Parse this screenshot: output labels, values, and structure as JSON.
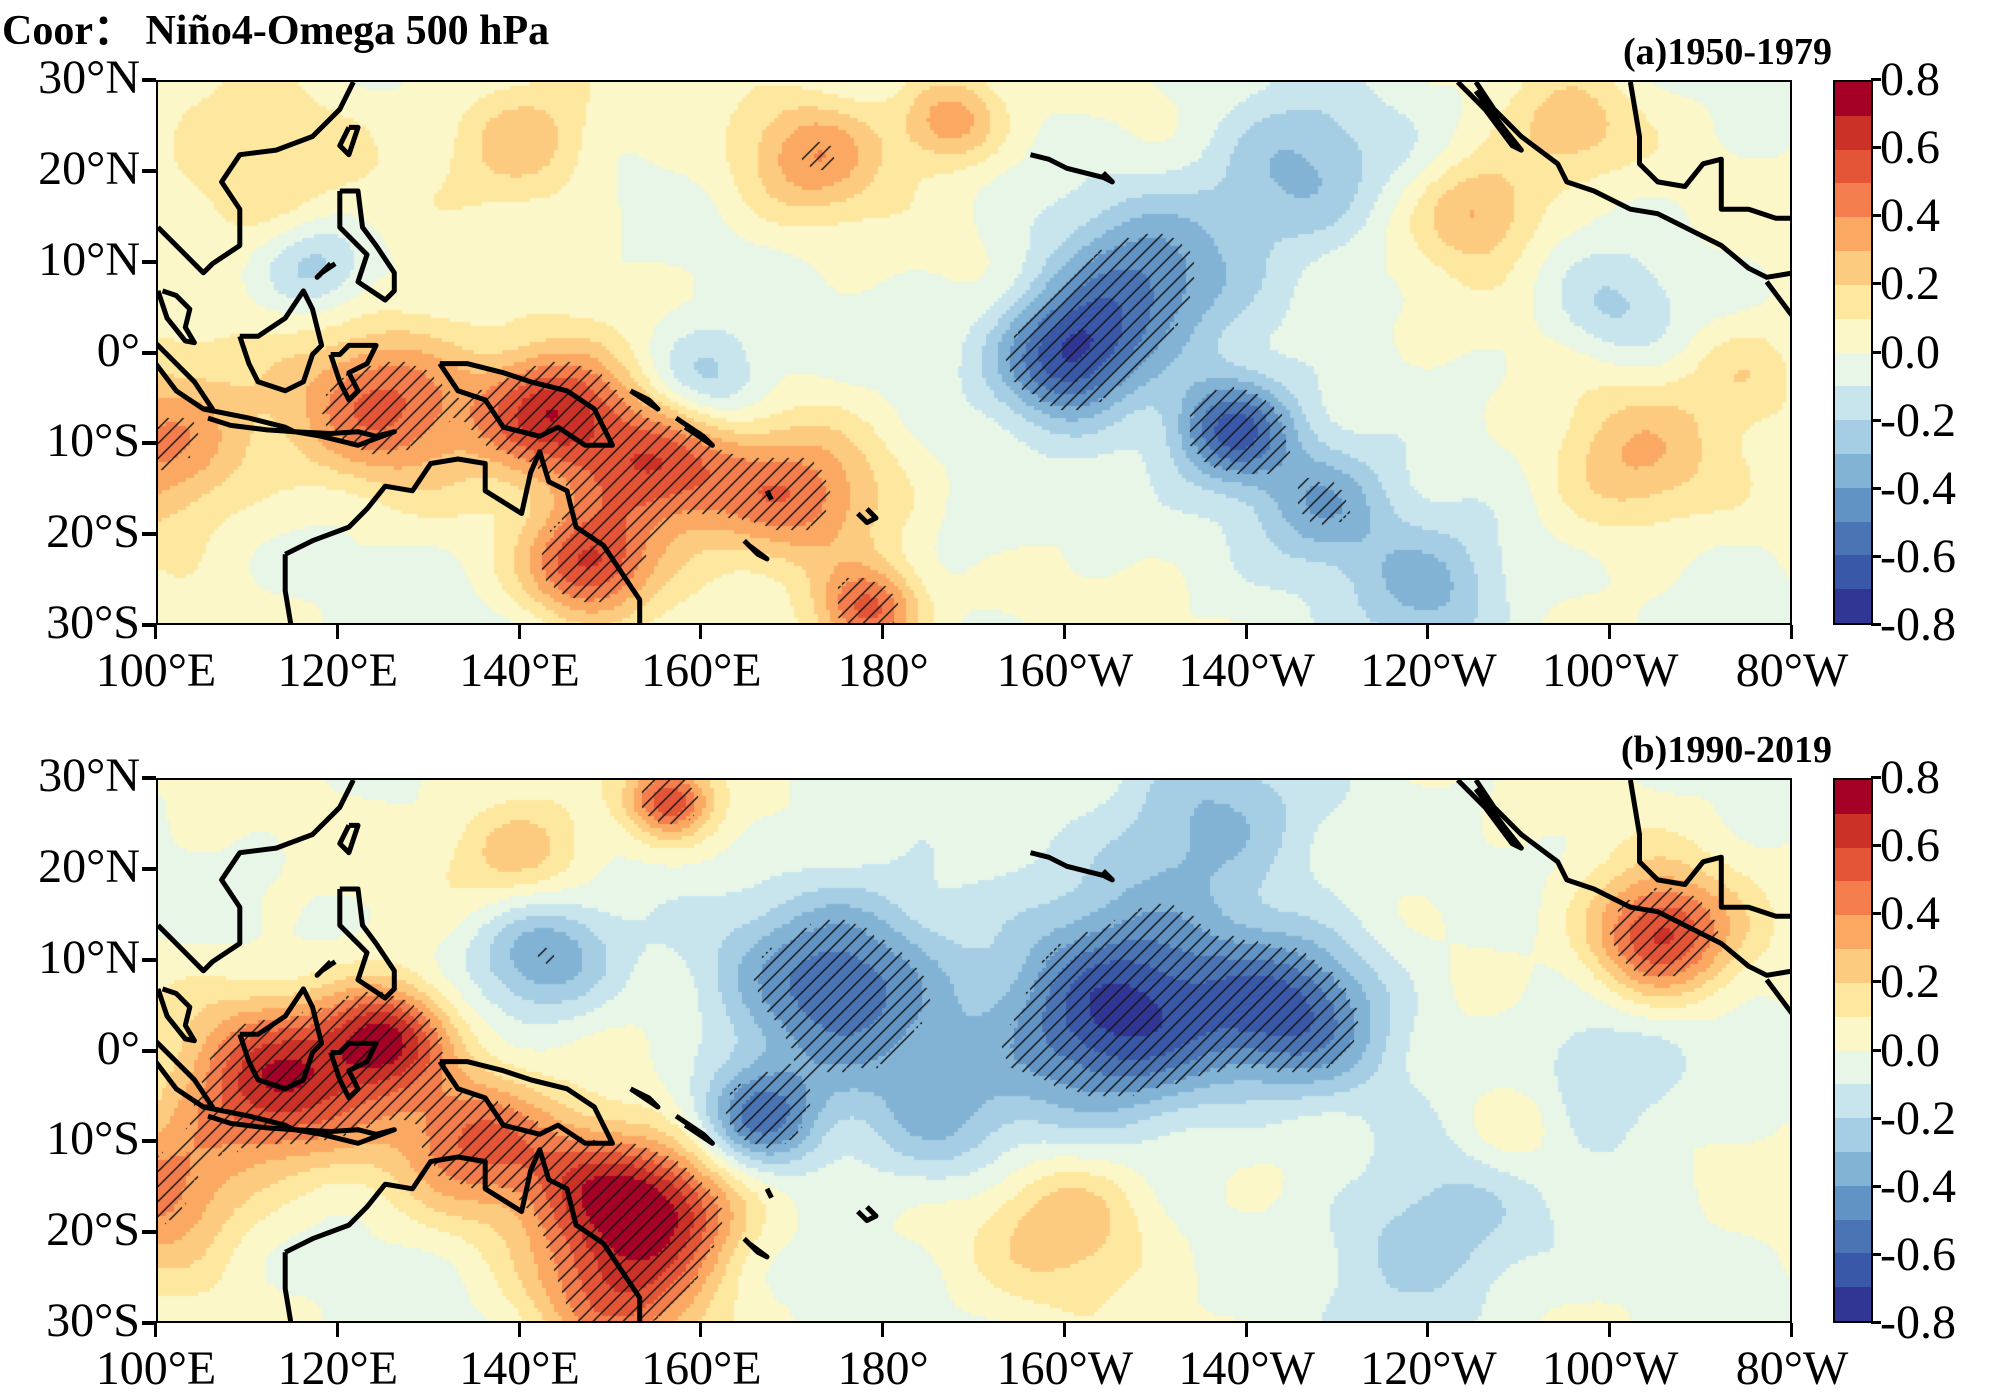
{
  "title": "Coor： Niño4-Omega 500 hPa",
  "chart_data": {
    "type": "heatmap",
    "projection": "lat-lon map",
    "lon_range": [
      "100°E",
      "80°W"
    ],
    "lat_range": [
      "30°S",
      "30°N"
    ],
    "x_ticks": [
      "100°E",
      "120°E",
      "140°E",
      "160°E",
      "180°",
      "160°W",
      "140°W",
      "120°W",
      "100°W",
      "80°W"
    ],
    "y_ticks": [
      "30°N",
      "20°N",
      "10°N",
      "0°",
      "10°S",
      "20°S",
      "30°S"
    ],
    "colorbar": {
      "range": [
        -0.8,
        0.8
      ],
      "step": 0.1,
      "colormap": "RdYlBu_r",
      "tick_labels": [
        "0.8",
        "0.6",
        "0.4",
        "0.2",
        "0.0",
        "-0.2",
        "-0.4",
        "-0.6",
        "-0.8"
      ],
      "colors": [
        "#313695",
        "#3a58a8",
        "#4a74b4",
        "#6193c4",
        "#82b2d4",
        "#a5cde3",
        "#c8e5ee",
        "#e8f6e8",
        "#fbf7c8",
        "#fee8a0",
        "#fdcb7f",
        "#fba862",
        "#f47d4d",
        "#e45538",
        "#cc3128",
        "#a50026"
      ]
    },
    "hatching": "significant regions",
    "panels": [
      {
        "label": "(a)1950-1979",
        "features_lon_east_lat_value_radius": [
          [
            100,
            -10,
            0.45,
            9
          ],
          [
            125,
            -5,
            0.5,
            9
          ],
          [
            143,
            -6,
            0.65,
            7
          ],
          [
            155,
            -12,
            0.6,
            8
          ],
          [
            170,
            -16,
            0.45,
            8
          ],
          [
            147,
            -23,
            0.55,
            6
          ],
          [
            178,
            -28,
            0.55,
            5
          ],
          [
            187,
            26,
            0.4,
            5
          ],
          [
            172,
            22,
            0.35,
            7
          ],
          [
            140,
            24,
            0.3,
            7
          ],
          [
            110,
            20,
            0.2,
            10
          ],
          [
            245,
            16,
            0.35,
            6
          ],
          [
            262,
            -12,
            0.3,
            8
          ],
          [
            275,
            -2,
            0.2,
            6
          ],
          [
            255,
            25,
            0.25,
            6
          ],
          [
            200,
            0,
            -0.65,
            7
          ],
          [
            218,
            -8,
            -0.65,
            6
          ],
          [
            208,
            8,
            -0.45,
            9
          ],
          [
            225,
            20,
            -0.35,
            9
          ],
          [
            240,
            -25,
            -0.35,
            8
          ],
          [
            228,
            -16,
            -0.4,
            7
          ],
          [
            160,
            -3,
            -0.35,
            6
          ],
          [
            117,
            10,
            -0.25,
            5
          ],
          [
            190,
            -18,
            -0.1,
            6
          ],
          [
            260,
            5,
            -0.2,
            6
          ]
        ]
      },
      {
        "label": "(b)1990-2019",
        "features_lon_east_lat_value_radius": [
          [
            113,
            -3,
            0.65,
            9
          ],
          [
            125,
            2,
            0.65,
            6
          ],
          [
            135,
            -9,
            0.5,
            8
          ],
          [
            148,
            -14,
            0.5,
            7
          ],
          [
            157,
            -17,
            0.55,
            7
          ],
          [
            150,
            -26,
            0.5,
            8
          ],
          [
            156,
            28,
            0.55,
            4
          ],
          [
            265,
            13,
            0.65,
            7
          ],
          [
            100,
            -15,
            0.45,
            8
          ],
          [
            140,
            22,
            0.3,
            7
          ],
          [
            200,
            -18,
            0.3,
            8
          ],
          [
            250,
            -8,
            0.2,
            6
          ],
          [
            205,
            4,
            -0.75,
            11
          ],
          [
            175,
            8,
            -0.55,
            11
          ],
          [
            142,
            11,
            -0.45,
            7
          ],
          [
            225,
            5,
            -0.55,
            9
          ],
          [
            166,
            -7,
            -0.55,
            6
          ],
          [
            215,
            25,
            -0.35,
            10
          ],
          [
            240,
            -20,
            -0.3,
            10
          ],
          [
            258,
            -3,
            -0.25,
            9
          ],
          [
            185,
            -8,
            -0.25,
            8
          ]
        ]
      }
    ]
  }
}
